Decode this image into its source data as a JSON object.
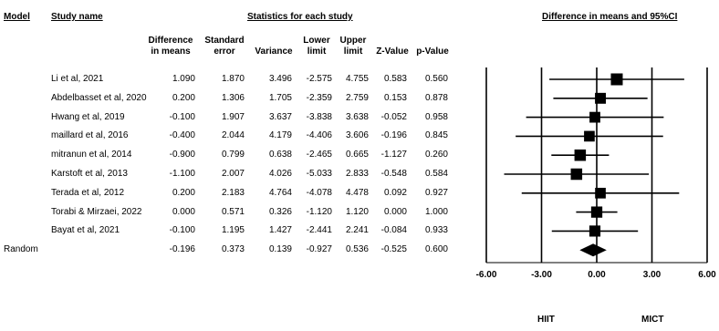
{
  "headers": {
    "model": "Model",
    "study_name": "Study name",
    "stats_group": "Statistics for each study",
    "plot_title": "Difference in means and 95%CI",
    "columns": [
      [
        "Difference",
        "in means"
      ],
      [
        "Standard",
        "error"
      ],
      [
        "Variance",
        ""
      ],
      [
        "Lower",
        "limit"
      ],
      [
        "Upper",
        "limit"
      ],
      [
        "Z-Value",
        ""
      ],
      [
        "p-Value",
        ""
      ]
    ]
  },
  "studies": [
    {
      "name": "Li et al, 2021",
      "diff": "1.090",
      "se": "1.870",
      "var": "3.496",
      "lower": "-2.575",
      "upper": "4.755",
      "z": "0.583",
      "p": "0.560"
    },
    {
      "name": "Abdelbasset et al, 2020",
      "diff": "0.200",
      "se": "1.306",
      "var": "1.705",
      "lower": "-2.359",
      "upper": "2.759",
      "z": "0.153",
      "p": "0.878"
    },
    {
      "name": "Hwang et al, 2019",
      "diff": "-0.100",
      "se": "1.907",
      "var": "3.637",
      "lower": "-3.838",
      "upper": "3.638",
      "z": "-0.052",
      "p": "0.958"
    },
    {
      "name": "maillard et al, 2016",
      "diff": "-0.400",
      "se": "2.044",
      "var": "4.179",
      "lower": "-4.406",
      "upper": "3.606",
      "z": "-0.196",
      "p": "0.845"
    },
    {
      "name": "mitranun et al, 2014",
      "diff": "-0.900",
      "se": "0.799",
      "var": "0.638",
      "lower": "-2.465",
      "upper": "0.665",
      "z": "-1.127",
      "p": "0.260"
    },
    {
      "name": "Karstoft et al, 2013",
      "diff": "-1.100",
      "se": "2.007",
      "var": "4.026",
      "lower": "-5.033",
      "upper": "2.833",
      "z": "-0.548",
      "p": "0.584"
    },
    {
      "name": "Terada et al, 2012",
      "diff": "0.200",
      "se": "2.183",
      "var": "4.764",
      "lower": "-4.078",
      "upper": "4.478",
      "z": "0.092",
      "p": "0.927"
    },
    {
      "name": "Torabi & Mirzaei, 2022",
      "diff": "0.000",
      "se": "0.571",
      "var": "0.326",
      "lower": "-1.120",
      "upper": "1.120",
      "z": "0.000",
      "p": "1.000"
    },
    {
      "name": "Bayat et al, 2021",
      "diff": "-0.100",
      "se": "1.195",
      "var": "1.427",
      "lower": "-2.441",
      "upper": "2.241",
      "z": "-0.084",
      "p": "0.933"
    }
  ],
  "pooled": {
    "model": "Random",
    "name": "",
    "diff": "-0.196",
    "se": "0.373",
    "var": "0.139",
    "lower": "-0.927",
    "upper": "0.536",
    "z": "-0.525",
    "p": "0.600"
  },
  "chart_data": {
    "type": "forest",
    "x_ticks": [
      "-6.00",
      "-3.00",
      "0.00",
      "3.00",
      "6.00"
    ],
    "xlim": [
      -6,
      6
    ],
    "left_label": "HIIT",
    "right_label": "MICT",
    "studies": [
      {
        "name": "Li et al, 2021",
        "estimate": 1.09,
        "lower": -2.575,
        "upper": 4.755,
        "weight": 1.0
      },
      {
        "name": "Abdelbasset et al, 2020",
        "estimate": 0.2,
        "lower": -2.359,
        "upper": 2.759,
        "weight": 0.82
      },
      {
        "name": "Hwang et al, 2019",
        "estimate": -0.1,
        "lower": -3.838,
        "upper": 3.638,
        "weight": 0.8
      },
      {
        "name": "maillard et al, 2016",
        "estimate": -0.4,
        "lower": -4.406,
        "upper": 3.606,
        "weight": 0.78
      },
      {
        "name": "mitranun et al, 2014",
        "estimate": -0.9,
        "lower": -2.465,
        "upper": 0.665,
        "weight": 0.92
      },
      {
        "name": "Karstoft et al, 2013",
        "estimate": -1.1,
        "lower": -5.033,
        "upper": 2.833,
        "weight": 0.92
      },
      {
        "name": "Terada et al, 2012",
        "estimate": 0.2,
        "lower": -4.078,
        "upper": 4.478,
        "weight": 0.78
      },
      {
        "name": "Torabi & Mirzaei, 2022",
        "estimate": 0.0,
        "lower": -1.12,
        "upper": 1.12,
        "weight": 0.88
      },
      {
        "name": "Bayat et al, 2021",
        "estimate": -0.1,
        "lower": -2.441,
        "upper": 2.241,
        "weight": 0.86
      }
    ],
    "pooled": {
      "estimate": -0.196,
      "lower": -0.927,
      "upper": 0.536
    }
  }
}
